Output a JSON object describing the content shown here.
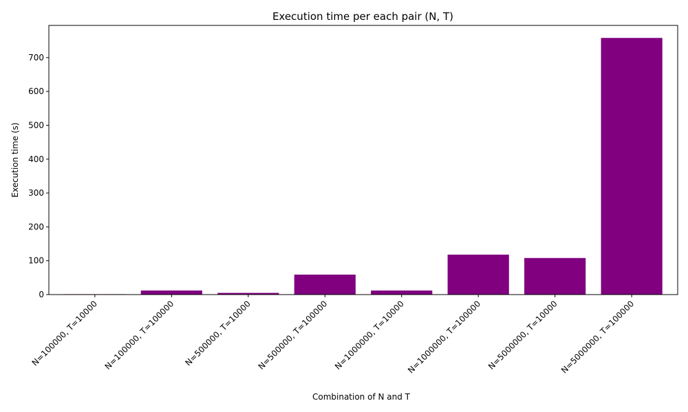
{
  "colors": {
    "bar": "#800080",
    "axis": "#000000",
    "background": "#ffffff"
  },
  "chart_data": {
    "type": "bar",
    "title": "Execution time per each pair (N, T)",
    "xlabel": "Combination of N and T",
    "ylabel": "Execution time (s)",
    "categories": [
      "N=100000, T=10000",
      "N=100000, T=100000",
      "N=500000, T=10000",
      "N=500000, T=100000",
      "N=1000000, T=10000",
      "N=1000000, T=100000",
      "N=5000000, T=10000",
      "N=5000000, T=100000"
    ],
    "values": [
      1.2,
      12,
      5,
      59,
      12,
      118,
      108,
      758
    ],
    "ylim": [
      0,
      795
    ],
    "yticks": [
      0,
      100,
      200,
      300,
      400,
      500,
      600,
      700
    ],
    "xtick_rotation": 45,
    "grid": false,
    "legend": "none"
  }
}
